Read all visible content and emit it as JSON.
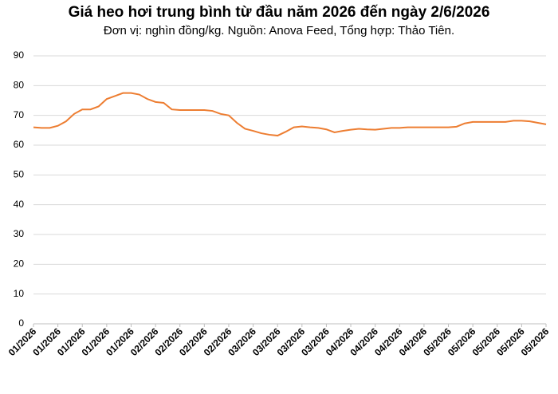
{
  "chart_data": {
    "type": "line",
    "title": "Giá heo hơi trung bình từ đầu năm 2026 đến ngày 2/6/2026",
    "subtitle": "Đơn vị: nghìn đồng/kg. Nguồn: Anova Feed, Tổng hợp: Thảo Tiên.",
    "categories": [
      "01/2026",
      null,
      null,
      "01/2026",
      null,
      null,
      "01/2026",
      null,
      null,
      "01/2026",
      null,
      null,
      "01/2026",
      null,
      null,
      "02/2026",
      null,
      null,
      "02/2026",
      null,
      null,
      "02/2026",
      null,
      null,
      "02/2026",
      null,
      null,
      "03/2026",
      null,
      null,
      "03/2026",
      null,
      null,
      "03/2026",
      null,
      null,
      "03/2026",
      null,
      null,
      "04/2026",
      null,
      null,
      "04/2026",
      null,
      null,
      "04/2026",
      null,
      null,
      "04/2026",
      null,
      null,
      "05/2026",
      null,
      null,
      "05/2026",
      null,
      null,
      "05/2026",
      null,
      null,
      "05/2026",
      null,
      null,
      "05/2026"
    ],
    "series": [
      {
        "color": "#ed7d31",
        "values": [
          66,
          65.8,
          65.8,
          66.5,
          68,
          70.5,
          72,
          72,
          73,
          75.5,
          76.5,
          77.5,
          77.5,
          77,
          75.5,
          74.5,
          74.2,
          72,
          71.8,
          71.8,
          71.8,
          71.8,
          71.5,
          70.5,
          70,
          67.5,
          65.5,
          64.8,
          64,
          63.5,
          63.2,
          64.5,
          66,
          66.3,
          66,
          65.8,
          65.3,
          64.3,
          64.8,
          65.2,
          65.5,
          65.3,
          65.2,
          65.5,
          65.8,
          65.8,
          66,
          66,
          66,
          66,
          66,
          66,
          66.2,
          67.3,
          67.8,
          67.8,
          67.8,
          67.8,
          67.8,
          68.2,
          68.2,
          68,
          67.5,
          67
        ]
      }
    ],
    "ylim": [
      0,
      90
    ],
    "yticks": [
      0,
      10,
      20,
      30,
      40,
      50,
      60,
      70,
      80,
      90
    ],
    "grid": true
  }
}
